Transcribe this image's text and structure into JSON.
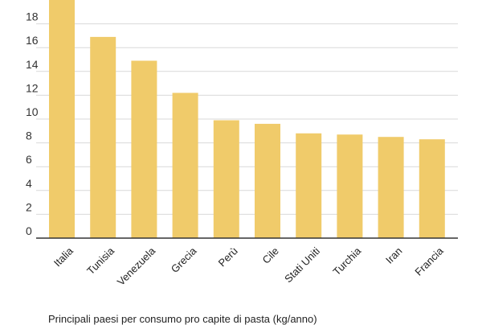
{
  "chart_data": {
    "type": "bar",
    "title": "",
    "xlabel": "",
    "ylabel": "",
    "categories": [
      "Italia",
      "Tunisia",
      "Venezuela",
      "Grecia",
      "Perù",
      "Cile",
      "Stati Uniti",
      "Turchia",
      "Iran",
      "Francia"
    ],
    "values": [
      20.1,
      16.9,
      14.9,
      12.2,
      9.9,
      9.6,
      8.8,
      8.7,
      8.5,
      8.3
    ],
    "y_ticks": [
      0,
      2,
      4,
      6,
      8,
      10,
      12,
      14,
      16,
      18
    ],
    "ylim": [
      0,
      20
    ],
    "grid": true,
    "bar_color": "#f0cb6a"
  },
  "footer": {
    "text": "Principali paesi per consumo pro capite di pasta (kg/anno)"
  }
}
